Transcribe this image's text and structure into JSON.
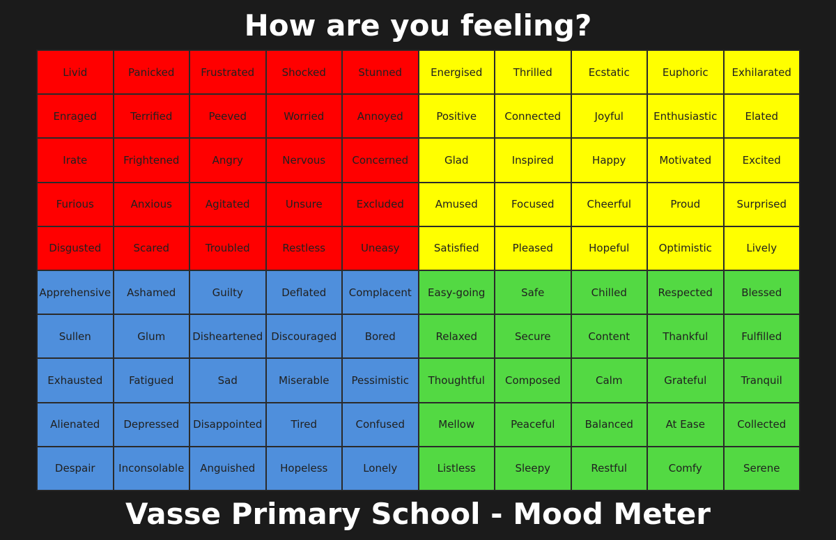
{
  "title": "How are you feeling?",
  "footer": "Vasse Primary School - Mood Meter",
  "colors": {
    "red": "#ff0000",
    "yellow": "#ffff00",
    "blue": "#4f8fdc",
    "green": "#53d943"
  },
  "grid": [
    [
      "Livid",
      "Panicked",
      "Frustrated",
      "Shocked",
      "Stunned",
      "Energised",
      "Thrilled",
      "Ecstatic",
      "Euphoric",
      "Exhilarated"
    ],
    [
      "Enraged",
      "Terrified",
      "Peeved",
      "Worried",
      "Annoyed",
      "Positive",
      "Connected",
      "Joyful",
      "Enthusiastic",
      "Elated"
    ],
    [
      "Irate",
      "Frightened",
      "Angry",
      "Nervous",
      "Concerned",
      "Glad",
      "Inspired",
      "Happy",
      "Motivated",
      "Excited"
    ],
    [
      "Furious",
      "Anxious",
      "Agitated",
      "Unsure",
      "Excluded",
      "Amused",
      "Focused",
      "Cheerful",
      "Proud",
      "Surprised"
    ],
    [
      "Disgusted",
      "Scared",
      "Troubled",
      "Restless",
      "Uneasy",
      "Satisfied",
      "Pleased",
      "Hopeful",
      "Optimistic",
      "Lively"
    ],
    [
      "Apprehensive",
      "Ashamed",
      "Guilty",
      "Deflated",
      "Complacent",
      "Easy-going",
      "Safe",
      "Chilled",
      "Respected",
      "Blessed"
    ],
    [
      "Sullen",
      "Glum",
      "Disheartened",
      "Discouraged",
      "Bored",
      "Relaxed",
      "Secure",
      "Content",
      "Thankful",
      "Fulfilled"
    ],
    [
      "Exhausted",
      "Fatigued",
      "Sad",
      "Miserable",
      "Pessimistic",
      "Thoughtful",
      "Composed",
      "Calm",
      "Grateful",
      "Tranquil"
    ],
    [
      "Alienated",
      "Depressed",
      "Disappointed",
      "Tired",
      "Confused",
      "Mellow",
      "Peaceful",
      "Balanced",
      "At Ease",
      "Collected"
    ],
    [
      "Despair",
      "Inconsolable",
      "Anguished",
      "Hopeless",
      "Lonely",
      "Listless",
      "Sleepy",
      "Restful",
      "Comfy",
      "Serene"
    ]
  ]
}
